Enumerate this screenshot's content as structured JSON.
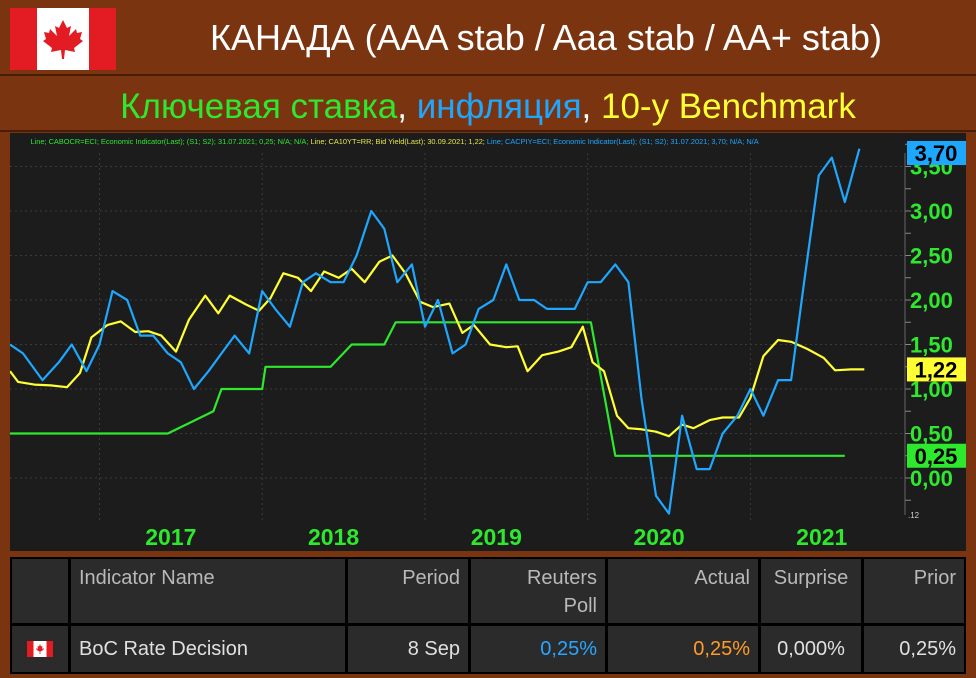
{
  "header": {
    "title": "КАНАДА (AAA stab / Aaa stab / AA+ stab)",
    "subtitle_parts": [
      {
        "text": "Ключевая ставка",
        "color": "#2ee82e"
      },
      {
        "text": ", ",
        "color": "#ffffff"
      },
      {
        "text": "инфляция",
        "color": "#1ea7ff"
      },
      {
        "text": ", ",
        "color": "#ffffff"
      },
      {
        "text": "10-у Benchmark",
        "color": "#ffff33"
      }
    ]
  },
  "chart_legend": {
    "s1": "Line; CABOCR=ECI; Economic Indicator(Last); (S1; S2); 31.07.2021; 0,25; N/A; N/A;",
    "s2": "Line; CA10YT=RR; Bid Yield(Last); 30.09.2021; 1,22;",
    "s3": "Line; CACPIY=ECI; Economic Indicator(Last); (S1; S2); 31.07.2021; 3,70; N/A; N/A"
  },
  "chart_data": {
    "type": "line",
    "x_ticks": [
      "2017",
      "2018",
      "2019",
      "2020",
      "2021"
    ],
    "y_ticks": [
      "0,00",
      "0,50",
      "1,00",
      "1,50",
      "2,00",
      "2,50",
      "3,00",
      "3,50"
    ],
    "ylim": [
      -0.45,
      3.9
    ],
    "xlim": [
      2016.45,
      2021.95
    ],
    "corner_label": ".12",
    "series": [
      {
        "color": "#2ee82e",
        "last_label": "0,25",
        "points": [
          [
            2016.45,
            0.5
          ],
          [
            2017.42,
            0.5
          ],
          [
            2017.7,
            0.75
          ],
          [
            2017.75,
            1.0
          ],
          [
            2018.0,
            1.0
          ],
          [
            2018.02,
            1.25
          ],
          [
            2018.42,
            1.25
          ],
          [
            2018.55,
            1.5
          ],
          [
            2018.75,
            1.5
          ],
          [
            2018.82,
            1.75
          ],
          [
            2020.02,
            1.75
          ],
          [
            2020.12,
            0.75
          ],
          [
            2020.17,
            0.25
          ],
          [
            2021.58,
            0.25
          ]
        ]
      },
      {
        "color": "#ffff33",
        "last_label": "1,22",
        "points": [
          [
            2016.45,
            1.2
          ],
          [
            2016.5,
            1.08
          ],
          [
            2016.6,
            1.05
          ],
          [
            2016.7,
            1.04
          ],
          [
            2016.8,
            1.02
          ],
          [
            2016.88,
            1.18
          ],
          [
            2016.95,
            1.58
          ],
          [
            2017.05,
            1.72
          ],
          [
            2017.13,
            1.76
          ],
          [
            2017.22,
            1.64
          ],
          [
            2017.3,
            1.65
          ],
          [
            2017.38,
            1.6
          ],
          [
            2017.47,
            1.42
          ],
          [
            2017.55,
            1.78
          ],
          [
            2017.65,
            2.05
          ],
          [
            2017.73,
            1.85
          ],
          [
            2017.8,
            2.05
          ],
          [
            2017.9,
            1.95
          ],
          [
            2017.98,
            1.88
          ],
          [
            2018.05,
            2.02
          ],
          [
            2018.13,
            2.3
          ],
          [
            2018.22,
            2.25
          ],
          [
            2018.3,
            2.1
          ],
          [
            2018.38,
            2.32
          ],
          [
            2018.47,
            2.25
          ],
          [
            2018.55,
            2.35
          ],
          [
            2018.63,
            2.2
          ],
          [
            2018.72,
            2.43
          ],
          [
            2018.8,
            2.5
          ],
          [
            2018.88,
            2.3
          ],
          [
            2018.97,
            1.98
          ],
          [
            2019.05,
            1.92
          ],
          [
            2019.15,
            1.96
          ],
          [
            2019.23,
            1.63
          ],
          [
            2019.3,
            1.72
          ],
          [
            2019.4,
            1.5
          ],
          [
            2019.5,
            1.47
          ],
          [
            2019.57,
            1.48
          ],
          [
            2019.63,
            1.2
          ],
          [
            2019.72,
            1.38
          ],
          [
            2019.82,
            1.42
          ],
          [
            2019.9,
            1.47
          ],
          [
            2019.97,
            1.7
          ],
          [
            2020.03,
            1.3
          ],
          [
            2020.1,
            1.2
          ],
          [
            2020.18,
            0.7
          ],
          [
            2020.25,
            0.56
          ],
          [
            2020.32,
            0.55
          ],
          [
            2020.42,
            0.52
          ],
          [
            2020.5,
            0.47
          ],
          [
            2020.58,
            0.6
          ],
          [
            2020.65,
            0.56
          ],
          [
            2020.75,
            0.65
          ],
          [
            2020.83,
            0.68
          ],
          [
            2020.93,
            0.68
          ],
          [
            2021.0,
            0.9
          ],
          [
            2021.08,
            1.37
          ],
          [
            2021.17,
            1.55
          ],
          [
            2021.25,
            1.53
          ],
          [
            2021.35,
            1.45
          ],
          [
            2021.45,
            1.35
          ],
          [
            2021.52,
            1.21
          ],
          [
            2021.62,
            1.22
          ],
          [
            2021.7,
            1.22
          ]
        ]
      },
      {
        "color": "#1ea7ff",
        "last_label": "3,70",
        "points": [
          [
            2016.45,
            1.5
          ],
          [
            2016.53,
            1.4
          ],
          [
            2016.65,
            1.1
          ],
          [
            2016.75,
            1.3
          ],
          [
            2016.83,
            1.5
          ],
          [
            2016.92,
            1.2
          ],
          [
            2017.0,
            1.5
          ],
          [
            2017.08,
            2.1
          ],
          [
            2017.17,
            2.0
          ],
          [
            2017.25,
            1.6
          ],
          [
            2017.33,
            1.6
          ],
          [
            2017.42,
            1.4
          ],
          [
            2017.5,
            1.3
          ],
          [
            2017.58,
            1.0
          ],
          [
            2017.67,
            1.2
          ],
          [
            2017.75,
            1.4
          ],
          [
            2017.83,
            1.6
          ],
          [
            2017.92,
            1.4
          ],
          [
            2018.0,
            2.1
          ],
          [
            2018.08,
            1.9
          ],
          [
            2018.17,
            1.7
          ],
          [
            2018.25,
            2.2
          ],
          [
            2018.33,
            2.3
          ],
          [
            2018.42,
            2.2
          ],
          [
            2018.5,
            2.2
          ],
          [
            2018.58,
            2.5
          ],
          [
            2018.67,
            3.0
          ],
          [
            2018.75,
            2.8
          ],
          [
            2018.83,
            2.2
          ],
          [
            2018.92,
            2.4
          ],
          [
            2019.0,
            1.7
          ],
          [
            2019.08,
            2.0
          ],
          [
            2019.17,
            1.4
          ],
          [
            2019.25,
            1.5
          ],
          [
            2019.33,
            1.9
          ],
          [
            2019.42,
            2.0
          ],
          [
            2019.5,
            2.4
          ],
          [
            2019.58,
            2.0
          ],
          [
            2019.67,
            2.0
          ],
          [
            2019.75,
            1.9
          ],
          [
            2019.83,
            1.9
          ],
          [
            2019.92,
            1.9
          ],
          [
            2020.0,
            2.2
          ],
          [
            2020.08,
            2.2
          ],
          [
            2020.17,
            2.4
          ],
          [
            2020.25,
            2.2
          ],
          [
            2020.33,
            0.9
          ],
          [
            2020.42,
            -0.2
          ],
          [
            2020.5,
            -0.4
          ],
          [
            2020.58,
            0.7
          ],
          [
            2020.67,
            0.1
          ],
          [
            2020.75,
            0.1
          ],
          [
            2020.83,
            0.5
          ],
          [
            2020.92,
            0.7
          ],
          [
            2021.0,
            1.0
          ],
          [
            2021.08,
            0.7
          ],
          [
            2021.17,
            1.1
          ],
          [
            2021.25,
            1.1
          ],
          [
            2021.33,
            2.2
          ],
          [
            2021.42,
            3.4
          ],
          [
            2021.5,
            3.6
          ],
          [
            2021.58,
            3.1
          ],
          [
            2021.67,
            3.7
          ]
        ]
      }
    ]
  },
  "table": {
    "headers": {
      "name": "Indicator Name",
      "period": "Period",
      "poll_line1": "Reuters",
      "poll_line2": "Poll",
      "actual": "Actual",
      "surprise": "Surprise",
      "prior": "Prior"
    },
    "row": {
      "name": "BoC Rate Decision",
      "period": "8 Sep",
      "poll": "0,25%",
      "actual": "0,25%",
      "surprise": "0,000%",
      "prior": "0,25%"
    },
    "colors": {
      "poll": "#2aa6ff",
      "actual": "#ff9b2a"
    }
  }
}
